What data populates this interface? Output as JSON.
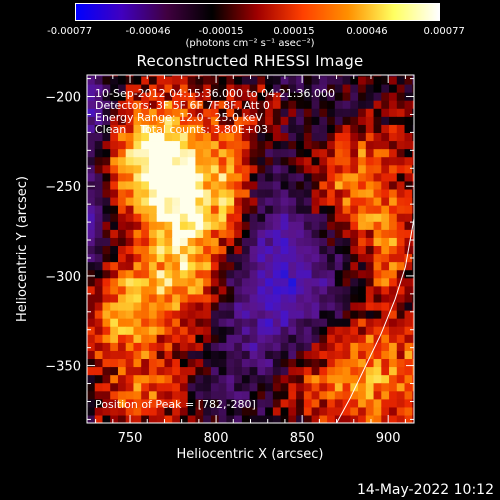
{
  "colorbar": {
    "ticks": [
      "-0.00077",
      "-0.00046",
      "-0.00015",
      "0.00015",
      "0.00046",
      "0.00077"
    ],
    "unit_label": "(photons cm⁻² s⁻¹ asec⁻²)",
    "stops": [
      "#0000ff",
      "#4000c0",
      "#400040",
      "#000000",
      "#a00000",
      "#ff4000",
      "#ff9000",
      "#ffff60",
      "#ffffff"
    ]
  },
  "title": "Reconstructed RHESSI Image",
  "annotations": {
    "time_range": "10-Sep-2012 04:15:36.000 to 04:21:36.000",
    "detectors": "Detectors: 3F 5F 6F 7F 8F, Att 0",
    "energy": "Energy Range: 12.0 - 25.0 keV",
    "method": "Clean    Total counts: 3.80E+03",
    "peak": "Position of Peak = [782,-280]"
  },
  "footer": {
    "date": "14-May-2022 10:12"
  },
  "chart_data": {
    "type": "heatmap",
    "title": "Reconstructed RHESSI Image",
    "xlabel": "Heliocentric X (arcsec)",
    "ylabel": "Heliocentric Y (arcsec)",
    "xlim": [
      725,
      915
    ],
    "ylim": [
      -382,
      -188
    ],
    "xticks": [
      750,
      800,
      850,
      900
    ],
    "yticks": [
      -200,
      -250,
      -300,
      -350
    ],
    "x_tick_labels": [
      "750",
      "800",
      "850",
      "900"
    ],
    "y_tick_labels": [
      "−200",
      "−250",
      "−300",
      "−350"
    ],
    "value_range": [
      -0.00077,
      0.00077
    ],
    "peak_position": [
      782,
      -280
    ],
    "sources": [
      {
        "x": 783,
        "y": -268,
        "amp": 0.00077,
        "sx": 18,
        "sy": 40
      },
      {
        "x": 760,
        "y": -235,
        "amp": 0.00055,
        "sx": 18,
        "sy": 22
      },
      {
        "x": 748,
        "y": -322,
        "amp": 0.0005,
        "sx": 18,
        "sy": 22
      },
      {
        "x": 812,
        "y": -255,
        "amp": 0.0004,
        "sx": 10,
        "sy": 30
      },
      {
        "x": 880,
        "y": -250,
        "amp": 0.00048,
        "sx": 22,
        "sy": 25
      },
      {
        "x": 900,
        "y": -292,
        "amp": 0.00035,
        "sx": 10,
        "sy": 20
      },
      {
        "x": 880,
        "y": -355,
        "amp": 0.00052,
        "sx": 38,
        "sy": 22
      },
      {
        "x": 830,
        "y": -368,
        "amp": 0.0002,
        "sx": 18,
        "sy": 10
      },
      {
        "x": 760,
        "y": -368,
        "amp": 0.00032,
        "sx": 22,
        "sy": 12
      },
      {
        "x": 835,
        "y": -205,
        "amp": 0.0003,
        "sx": 14,
        "sy": 10
      },
      {
        "x": 835,
        "y": -300,
        "amp": -0.0006,
        "sx": 26,
        "sy": 40
      },
      {
        "x": 725,
        "y": -265,
        "amp": -0.00045,
        "sx": 8,
        "sy": 28
      },
      {
        "x": 725,
        "y": -205,
        "amp": -0.00045,
        "sx": 10,
        "sy": 14
      },
      {
        "x": 815,
        "y": -365,
        "amp": -0.0003,
        "sx": 22,
        "sy": 18
      },
      {
        "x": 850,
        "y": -200,
        "amp": -0.00025,
        "sx": 18,
        "sy": 14
      }
    ],
    "limb_curve": [
      [
        870,
        -382
      ],
      [
        878,
        -368
      ],
      [
        887,
        -350
      ],
      [
        896,
        -332
      ],
      [
        904,
        -313
      ],
      [
        910,
        -295
      ],
      [
        915,
        -268
      ],
      [
        917,
        -258
      ]
    ]
  }
}
